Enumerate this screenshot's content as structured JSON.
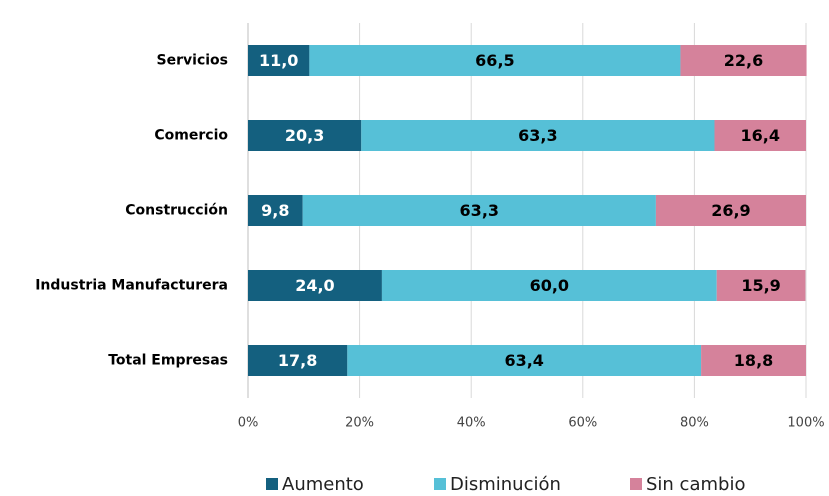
{
  "chart_data": {
    "type": "stacked-barh",
    "categories": [
      "Servicios",
      "Comercio",
      "Construcción",
      "Industria Manufacturera",
      "Total Empresas"
    ],
    "series": [
      {
        "name": "Aumento",
        "color": "#14607f",
        "label_color": "#ffffff",
        "values": [
          11.0,
          20.3,
          9.8,
          24.0,
          17.8
        ],
        "value_labels": [
          "11,0",
          "20,3",
          "9,8",
          "24,0",
          "17,8"
        ]
      },
      {
        "name": "Disminución",
        "color": "#56c0d7",
        "label_color": "#000000",
        "values": [
          66.5,
          63.3,
          63.3,
          60.0,
          63.4
        ],
        "value_labels": [
          "66,5",
          "63,3",
          "63,3",
          "60,0",
          "63,4"
        ]
      },
      {
        "name": "Sin cambio",
        "color": "#d5829b",
        "label_color": "#000000",
        "values": [
          22.6,
          16.4,
          26.9,
          15.9,
          18.8
        ],
        "value_labels": [
          "22,6",
          "16,4",
          "26,9",
          "15,9",
          "18,8"
        ]
      }
    ],
    "xlim": [
      0,
      100
    ],
    "xticks": [
      {
        "value": 0,
        "label": "0%"
      },
      {
        "value": 20,
        "label": "20%"
      },
      {
        "value": 40,
        "label": "40%"
      },
      {
        "value": 60,
        "label": "60%"
      },
      {
        "value": 80,
        "label": "80%"
      },
      {
        "value": 100,
        "label": "100%"
      }
    ],
    "grid": true,
    "legend": "bottom"
  }
}
